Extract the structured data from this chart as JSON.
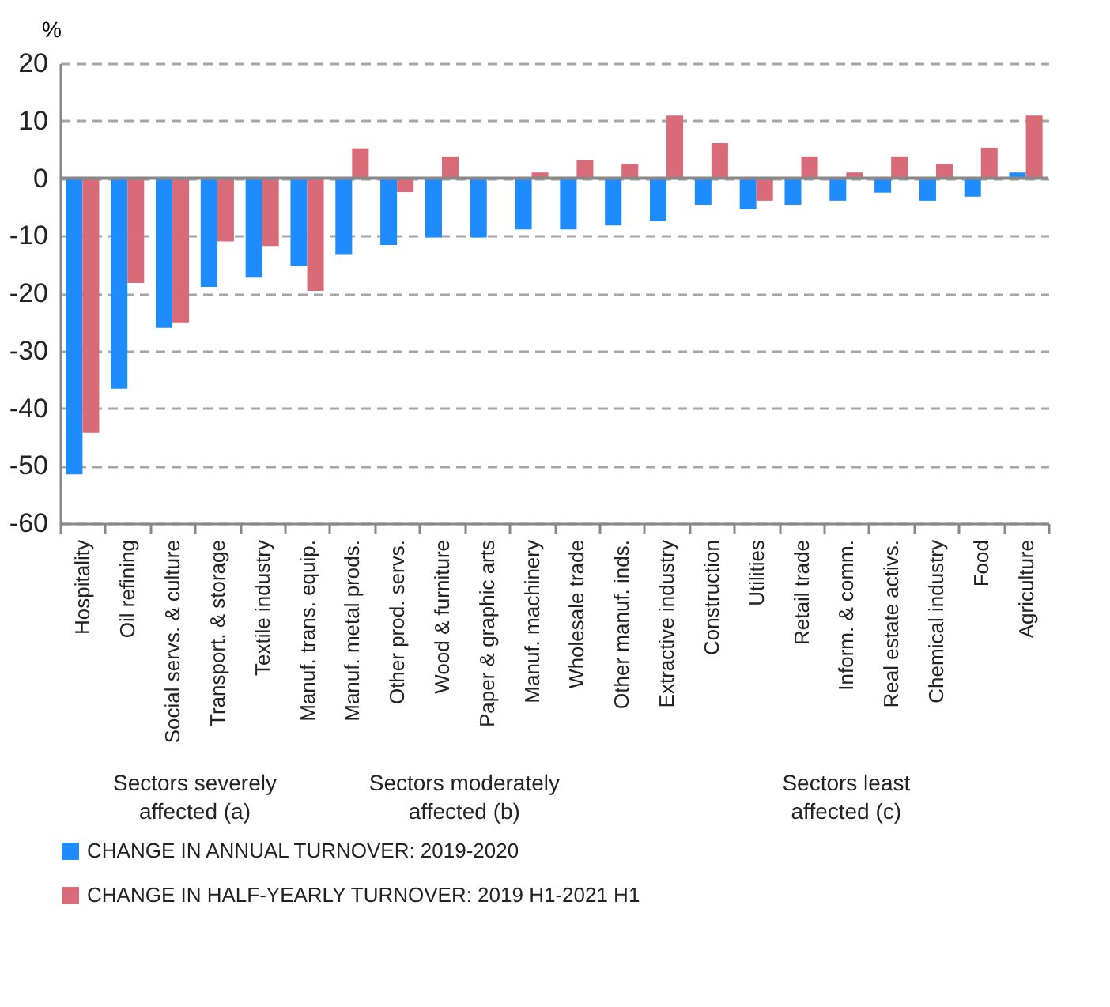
{
  "chart_data": {
    "type": "bar",
    "ylabel": "%",
    "categories": [
      "Hospitality",
      "Oil refining",
      "Social servs. & culture",
      "Transport. & storage",
      "Textile industry",
      "Manuf. trans. equip.",
      "Manuf. metal prods.",
      "Other prod. servs.",
      "Wood & furniture",
      "Paper & graphic arts",
      "Manuf. machinery",
      "Wholesale trade",
      "Other manuf. inds.",
      "Extractive industry",
      "Construction",
      "Utilities",
      "Retail trade",
      "Inform. & comm.",
      "Real estate activs.",
      "Chemical industry",
      "Food",
      "Agriculture"
    ],
    "series": [
      {
        "name": "CHANGE IN ANNUAL TURNOVER: 2019-2020",
        "color": "#1e8cff",
        "values": [
          -51.5,
          -36.6,
          -26,
          -18.9,
          -17.3,
          -15.3,
          -13.2,
          -11.6,
          -10.3,
          -10.3,
          -8.9,
          -8.9,
          -8.2,
          -7.5,
          -4.6,
          -5.4,
          -4.6,
          -3.9,
          -2.5,
          -3.9,
          -3.2,
          1.0
        ]
      },
      {
        "name": "CHANGE IN HALF-YEARLY TURNOVER: 2019 H1-2021 H1",
        "color": "#d96b78",
        "values": [
          -44.3,
          -18.2,
          -25.2,
          -11,
          -11.8,
          -19.6,
          5.2,
          -2.4,
          3.8,
          null,
          1.0,
          3.1,
          2.5,
          10.9,
          6.1,
          -3.9,
          3.8,
          1.0,
          3.8,
          2.5,
          5.3,
          10.9
        ]
      }
    ],
    "ylim": [
      -60,
      20
    ],
    "yticks": [
      -60,
      -50,
      -40,
      -30,
      -20,
      -10,
      0,
      10,
      20
    ],
    "grid": "y",
    "legend": "bottom",
    "annotations": [
      "Sectors severely\naffected (a)",
      "Sectors moderately\naffected (b)",
      "Sectors least\naffected (c)"
    ]
  }
}
